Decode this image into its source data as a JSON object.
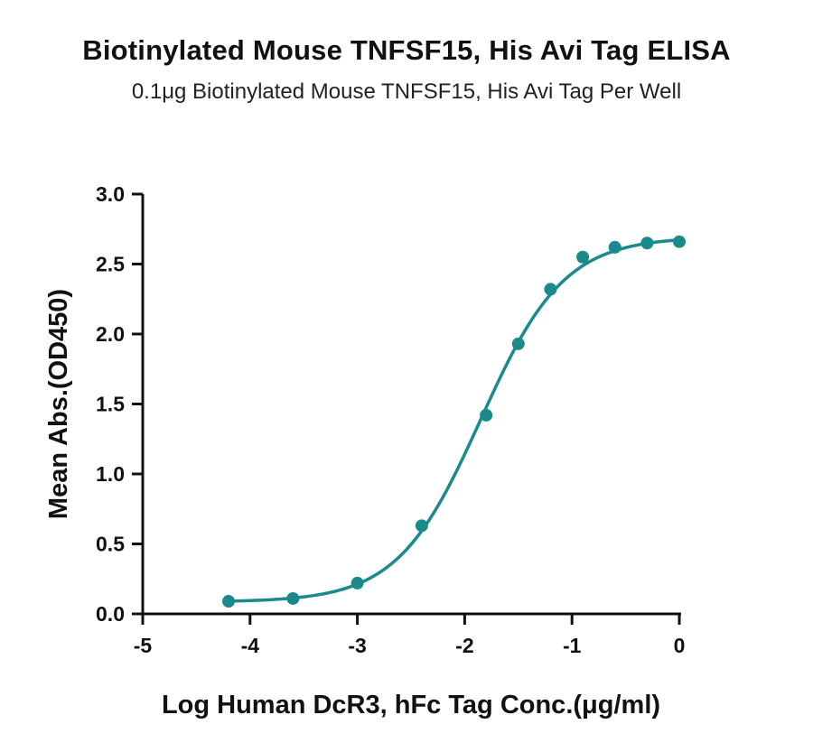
{
  "chart_data": {
    "type": "scatter",
    "title": "Biotinylated Mouse TNFSF15, His Avi Tag ELISA",
    "subtitle": "0.1μg Biotinylated Mouse TNFSF15, His Avi Tag Per Well",
    "xlabel": "Log Human DcR3, hFc Tag Conc.(μg/ml)",
    "ylabel": "Mean Abs.(OD450)",
    "xlim": [
      -5,
      0
    ],
    "ylim": [
      0,
      3.0
    ],
    "xticks": [
      "-5",
      "-4",
      "-3",
      "-2",
      "-1",
      "0"
    ],
    "yticks": [
      "0.0",
      "0.5",
      "1.0",
      "1.5",
      "2.0",
      "2.5",
      "3.0"
    ],
    "grid": false,
    "series_color": "#1a8a8c",
    "points": {
      "x": [
        -4.2,
        -3.6,
        -3.0,
        -2.4,
        -1.8,
        -1.5,
        -1.2,
        -0.9,
        -0.6,
        -0.3,
        0.0
      ],
      "y": [
        0.09,
        0.11,
        0.22,
        0.63,
        1.42,
        1.93,
        2.32,
        2.55,
        2.62,
        2.65,
        2.66
      ]
    },
    "fit": {
      "model": "4PL",
      "bottom": 0.085,
      "top": 2.695,
      "log_ec50": -1.85,
      "hill_slope": 1.12
    }
  }
}
